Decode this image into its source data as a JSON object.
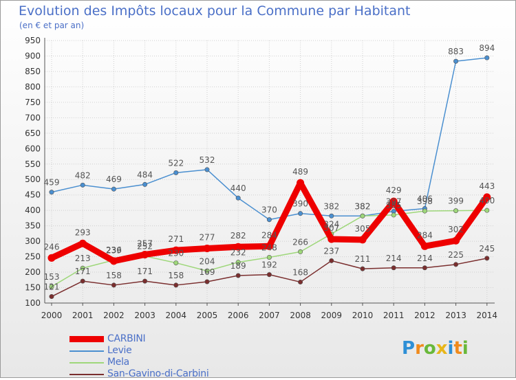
{
  "chart_data": {
    "type": "line",
    "title": "Evolution des Impôts locaux pour la Commune par Habitant",
    "subtitle": "(en € et par an)",
    "x": [
      "2000",
      "2001",
      "2002",
      "2003",
      "2004",
      "2005",
      "2006",
      "2007",
      "2008",
      "2009",
      "2010",
      "2011",
      "2012",
      "2013",
      "2014"
    ],
    "y_ticks": [
      100,
      150,
      200,
      250,
      300,
      350,
      400,
      450,
      500,
      550,
      600,
      650,
      700,
      750,
      800,
      850,
      900,
      950
    ],
    "ylim": [
      100,
      950
    ],
    "grid": true,
    "legend_position": "bottom-left",
    "series": [
      {
        "name": "CARBINI",
        "color": "#ee0000",
        "values": [
          246,
          293,
          236,
          257,
          271,
          277,
          282,
          284,
          489,
          307,
          305,
          429,
          284,
          302,
          443
        ],
        "labels": [
          "246",
          "293",
          "236",
          "257",
          "271",
          "277",
          "282",
          "284",
          "489",
          "307",
          "305",
          "429",
          "284",
          "302",
          "443"
        ]
      },
      {
        "name": "Levie",
        "color": "#4a8fd0",
        "values": [
          459,
          482,
          469,
          484,
          522,
          532,
          440,
          370,
          390,
          382,
          382,
          397,
          406,
          883,
          894
        ],
        "labels": [
          "459",
          "482",
          "469",
          "484",
          "522",
          "532",
          "440",
          "370",
          "390",
          "382",
          "382",
          "397",
          "406",
          "883",
          "894"
        ]
      },
      {
        "name": "Mela",
        "color": "#9ed77a",
        "values": [
          153,
          213,
          239,
          252,
          230,
          204,
          232,
          248,
          266,
          324,
          382,
          385,
          398,
          399,
          400
        ],
        "labels": [
          "153",
          "213",
          "239",
          "252",
          "230",
          "204",
          "232",
          "248",
          "266",
          "324",
          "382",
          "385",
          "398",
          "399",
          "400"
        ]
      },
      {
        "name": "San-Gavino-di-Carbini",
        "color": "#7a2e2e",
        "values": [
          121,
          171,
          158,
          171,
          158,
          169,
          189,
          192,
          168,
          237,
          211,
          214,
          214,
          225,
          245
        ],
        "labels": [
          "121",
          "171",
          "158",
          "171",
          "158",
          "169",
          "189",
          "192",
          "168",
          "237",
          "211",
          "214",
          "214",
          "225",
          "245"
        ]
      }
    ]
  },
  "logo": {
    "letters": [
      "P",
      "r",
      "o",
      "x",
      "i",
      "t",
      "i"
    ],
    "colors": [
      "#2d8fd6",
      "#f08a1c",
      "#69b83a",
      "#e8b61a",
      "#2d8fd6",
      "#f08a1c",
      "#69b83a"
    ]
  }
}
